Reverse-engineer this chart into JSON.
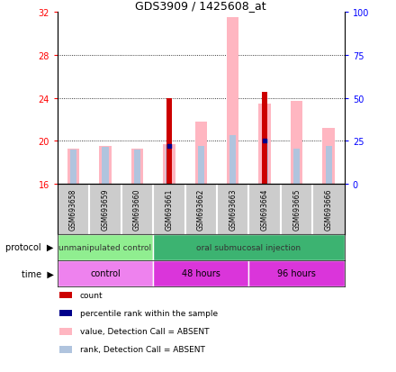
{
  "title": "GDS3909 / 1425608_at",
  "samples": [
    "GSM693658",
    "GSM693659",
    "GSM693660",
    "GSM693661",
    "GSM693662",
    "GSM693663",
    "GSM693664",
    "GSM693665",
    "GSM693666"
  ],
  "ylim_left": [
    16,
    32
  ],
  "ylim_right": [
    0,
    100
  ],
  "yticks_left": [
    16,
    20,
    24,
    28,
    32
  ],
  "yticks_right": [
    0,
    25,
    50,
    75,
    100
  ],
  "count_values": [
    null,
    null,
    null,
    24.0,
    null,
    null,
    24.6,
    null,
    null
  ],
  "percentile_values": [
    null,
    null,
    null,
    19.5,
    null,
    null,
    20.0,
    null,
    null
  ],
  "pink_bar_top": [
    19.3,
    19.5,
    19.3,
    19.7,
    21.8,
    31.5,
    23.5,
    23.7,
    21.2
  ],
  "lightblue_bar_top": [
    19.2,
    19.4,
    19.2,
    19.6,
    19.5,
    20.5,
    20.1,
    19.3,
    19.5
  ],
  "protocol_groups": [
    {
      "label": "unmanipulated control",
      "start": 0,
      "end": 3,
      "color": "#90ee90"
    },
    {
      "label": "oral submucosal injection",
      "start": 3,
      "end": 9,
      "color": "#3cb371"
    }
  ],
  "time_groups": [
    {
      "label": "control",
      "start": 0,
      "end": 3,
      "color": "#ee82ee"
    },
    {
      "label": "48 hours",
      "start": 3,
      "end": 6,
      "color": "#da35da"
    },
    {
      "label": "96 hours",
      "start": 6,
      "end": 9,
      "color": "#da35da"
    }
  ],
  "legend_items": [
    {
      "color": "#cc0000",
      "label": "count"
    },
    {
      "color": "#00008b",
      "label": "percentile rank within the sample"
    },
    {
      "color": "#ffb6c1",
      "label": "value, Detection Call = ABSENT"
    },
    {
      "color": "#b0c4de",
      "label": "rank, Detection Call = ABSENT"
    }
  ],
  "grid_color": "black",
  "background_color": "#ffffff",
  "left_axis_color": "red",
  "right_axis_color": "blue",
  "pink_bar_color": "#ffb6c1",
  "lightblue_bar_color": "#b0c4de",
  "darkred_bar_color": "#cc0000",
  "blue_dot_color": "#00008b",
  "gray_box_color": "#cccccc",
  "col_separator_color": "#ffffff"
}
